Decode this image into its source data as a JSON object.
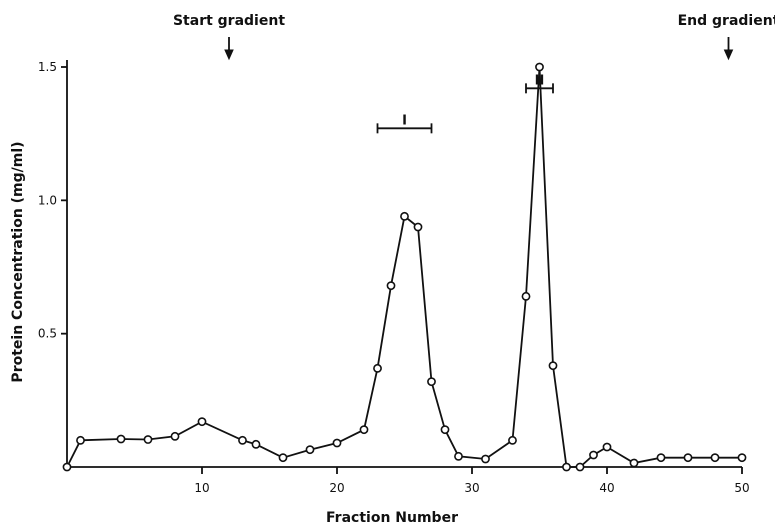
{
  "chart_data": {
    "type": "line",
    "title": "",
    "xlabel": "Fraction Number",
    "ylabel": "Protein Concentration (mg/ml)",
    "xlim": [
      0,
      50
    ],
    "ylim": [
      0,
      1.5
    ],
    "x_ticks": [
      10,
      20,
      30,
      40,
      50
    ],
    "x_tick_labels": [
      "10",
      "20",
      "30",
      "40",
      "50"
    ],
    "y_ticks": [
      0.5,
      1.0,
      1.5
    ],
    "y_tick_labels": [
      "0.5",
      "1.0",
      "1.5"
    ],
    "grid": false,
    "legend": "none",
    "series": [
      {
        "x": [
          0,
          1,
          4,
          6,
          8,
          10,
          13,
          14,
          16,
          18,
          20,
          22,
          23,
          24,
          25,
          26,
          27,
          28,
          29,
          31,
          33,
          34,
          35,
          36,
          37,
          38,
          39,
          40,
          42,
          44,
          46,
          48,
          50
        ],
        "y": [
          0.0,
          0.1,
          0.105,
          0.103,
          0.115,
          0.17,
          0.1,
          0.085,
          0.035,
          0.065,
          0.09,
          0.14,
          0.37,
          0.68,
          0.94,
          0.9,
          0.32,
          0.14,
          0.04,
          0.03,
          0.1,
          0.64,
          1.5,
          0.38,
          0.0,
          0.0,
          0.045,
          0.075,
          0.015,
          0.035,
          0.035,
          0.035,
          0.035
        ]
      }
    ],
    "annotations": [
      {
        "text": "Start gradient",
        "x": 12,
        "kind": "arrow"
      },
      {
        "text": "End gradient",
        "x": 49,
        "kind": "arrow"
      },
      {
        "text": "I",
        "x_start": 23,
        "x_end": 27,
        "y": 1.27,
        "kind": "bracket"
      },
      {
        "text": "II",
        "x_start": 34,
        "x_end": 36,
        "y": 1.42,
        "kind": "bracket"
      }
    ]
  }
}
